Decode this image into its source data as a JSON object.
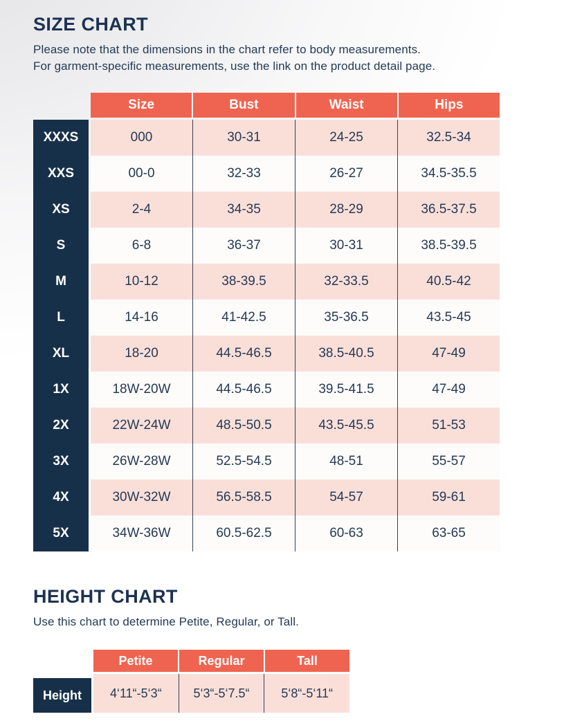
{
  "size_chart": {
    "title": "SIZE CHART",
    "note_line1": "Please note that the dimensions in the chart refer to body measurements.",
    "note_line2": "For garment-specific measurements, use the link on the product detail page.",
    "columns": [
      "Size",
      "Bust",
      "Waist",
      "Hips"
    ],
    "rows": [
      {
        "label": "XXXS",
        "values": [
          "000",
          "30-31",
          "24-25",
          "32.5-34"
        ]
      },
      {
        "label": "XXS",
        "values": [
          "00-0",
          "32-33",
          "26-27",
          "34.5-35.5"
        ]
      },
      {
        "label": "XS",
        "values": [
          "2-4",
          "34-35",
          "28-29",
          "36.5-37.5"
        ]
      },
      {
        "label": "S",
        "values": [
          "6-8",
          "36-37",
          "30-31",
          "38.5-39.5"
        ]
      },
      {
        "label": "M",
        "values": [
          "10-12",
          "38-39.5",
          "32-33.5",
          "40.5-42"
        ]
      },
      {
        "label": "L",
        "values": [
          "14-16",
          "41-42.5",
          "35-36.5",
          "43.5-45"
        ]
      },
      {
        "label": "XL",
        "values": [
          "18-20",
          "44.5-46.5",
          "38.5-40.5",
          "47-49"
        ]
      },
      {
        "label": "1X",
        "values": [
          "18W-20W",
          "44.5-46.5",
          "39.5-41.5",
          "47-49"
        ]
      },
      {
        "label": "2X",
        "values": [
          "22W-24W",
          "48.5-50.5",
          "43.5-45.5",
          "51-53"
        ]
      },
      {
        "label": "3X",
        "values": [
          "26W-28W",
          "52.5-54.5",
          "48-51",
          "55-57"
        ]
      },
      {
        "label": "4X",
        "values": [
          "30W-32W",
          "56.5-58.5",
          "54-57",
          "59-61"
        ]
      },
      {
        "label": "5X",
        "values": [
          "34W-36W",
          "60.5-62.5",
          "60-63",
          "63-65"
        ]
      }
    ]
  },
  "height_chart": {
    "title": "HEIGHT CHART",
    "subtitle": "Use this chart to determine Petite, Regular, or Tall.",
    "columns": [
      "Petite",
      "Regular",
      "Tall"
    ],
    "rows": [
      {
        "label": "Height",
        "values": [
          "4‘11“-5‘3“",
          "5‘3“-5‘7.5“",
          "5‘8“-5‘11“"
        ]
      }
    ]
  },
  "colors": {
    "header_orange": "#ef6450",
    "label_navy": "#17304a",
    "row_pink": "#fadfd9",
    "text_navy": "#243a54"
  }
}
